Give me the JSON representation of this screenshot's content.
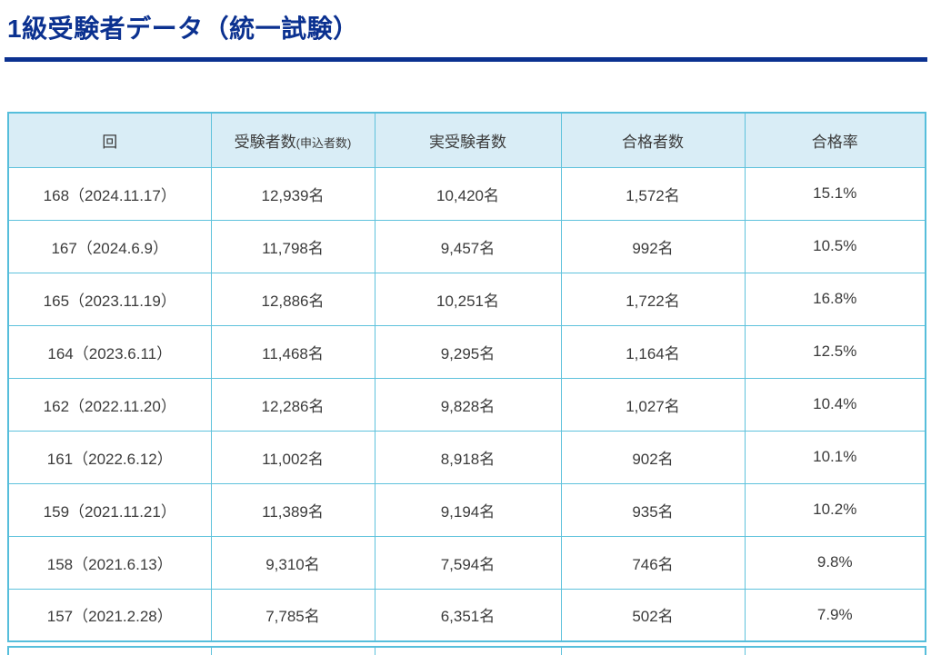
{
  "title": "1級受験者データ（統一試験）",
  "theme": {
    "title_color": "#0b3190",
    "rule_color": "#0b3190",
    "table_border_color": "#5ec2dc",
    "header_bg": "#d9edf6",
    "text_color": "#3b3b3b"
  },
  "table": {
    "columns": [
      {
        "label": "回",
        "sublabel": ""
      },
      {
        "label": "受験者数",
        "sublabel": "(申込者数)"
      },
      {
        "label": "実受験者数",
        "sublabel": ""
      },
      {
        "label": "合格者数",
        "sublabel": ""
      },
      {
        "label": "合格率",
        "sublabel": ""
      }
    ],
    "rows": [
      [
        "168（2024.11.17）",
        "12,939名",
        "10,420名",
        "1,572名",
        "15.1%"
      ],
      [
        "167（2024.6.9）",
        "11,798名",
        "9,457名",
        "992名",
        "10.5%"
      ],
      [
        "165（2023.11.19）",
        "12,886名",
        "10,251名",
        "1,722名",
        "16.8%"
      ],
      [
        "164（2023.6.11）",
        "11,468名",
        "9,295名",
        "1,164名",
        "12.5%"
      ],
      [
        "162（2022.11.20）",
        "12,286名",
        "9,828名",
        "1,027名",
        "10.4%"
      ],
      [
        "161（2022.6.12）",
        "11,002名",
        "8,918名",
        "902名",
        "10.1%"
      ],
      [
        "159（2021.11.21）",
        "11,389名",
        "9,194名",
        "935名",
        "10.2%"
      ],
      [
        "158（2021.6.13）",
        "9,310名",
        "7,594名",
        "746名",
        "9.8%"
      ],
      [
        "157（2021.2.28）",
        "7,785名",
        "6,351名",
        "502名",
        "7.9%"
      ]
    ]
  }
}
